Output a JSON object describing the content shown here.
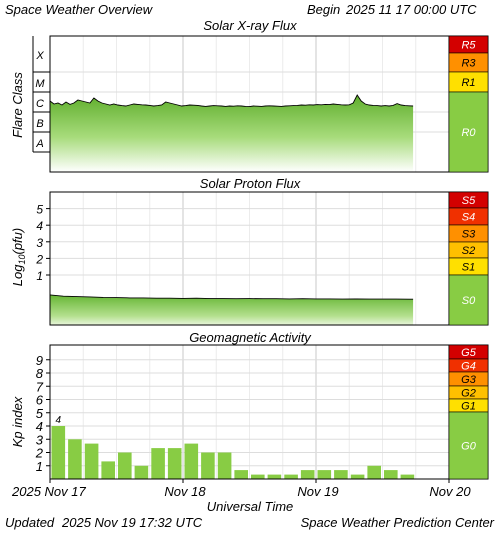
{
  "header": {
    "title": "Space Weather Overview",
    "begin_label": "Begin",
    "begin_date": "2025 11 17 00:00 UTC"
  },
  "footer": {
    "updated_label": "Updated",
    "updated_date": "2025 Nov 19 17:32 UTC",
    "center": "Space Weather Prediction Center"
  },
  "chart_data": [
    {
      "type": "line",
      "title": "Solar X-ray Flux",
      "ylabel": "Flare Class",
      "y_categories": [
        "A",
        "B",
        "C",
        "M",
        "X"
      ],
      "x_ticks": [
        "2025 Nov 17",
        "Nov 18",
        "Nov 19",
        "Nov 20"
      ],
      "xlim_days": [
        0,
        3
      ],
      "grid": true,
      "series": [
        {
          "x_days": [
            0.0,
            0.03,
            0.06,
            0.09,
            0.12,
            0.15,
            0.18,
            0.21,
            0.24,
            0.27,
            0.3,
            0.33,
            0.36,
            0.39,
            0.42,
            0.45,
            0.48,
            0.51,
            0.54,
            0.57,
            0.6,
            0.63,
            0.66,
            0.69,
            0.72,
            0.75,
            0.78,
            0.81,
            0.84,
            0.87,
            0.9,
            0.93,
            0.96,
            0.99,
            1.02,
            1.05,
            1.08,
            1.11,
            1.14,
            1.17,
            1.2,
            1.23,
            1.26,
            1.29,
            1.32,
            1.35,
            1.38,
            1.41,
            1.44,
            1.47,
            1.5,
            1.53,
            1.56,
            1.59,
            1.62,
            1.65,
            1.68,
            1.71,
            1.74,
            1.77,
            1.8,
            1.83,
            1.86,
            1.89,
            1.92,
            1.95,
            1.98,
            2.01,
            2.04,
            2.07,
            2.1,
            2.13,
            2.16,
            2.19,
            2.22,
            2.25,
            2.28,
            2.31,
            2.34,
            2.37,
            2.4,
            2.43,
            2.46,
            2.49,
            2.52,
            2.55,
            2.58,
            2.61,
            2.64,
            2.67,
            2.7,
            2.73
          ],
          "flux_level": [
            2.55,
            2.4,
            2.45,
            2.35,
            2.5,
            2.38,
            2.45,
            2.6,
            2.55,
            2.5,
            2.45,
            2.7,
            2.55,
            2.45,
            2.4,
            2.35,
            2.4,
            2.35,
            2.32,
            2.3,
            2.35,
            2.4,
            2.38,
            2.36,
            2.35,
            2.33,
            2.3,
            2.32,
            2.35,
            2.5,
            2.45,
            2.4,
            2.35,
            2.3,
            2.32,
            2.35,
            2.34,
            2.33,
            2.3,
            2.28,
            2.3,
            2.32,
            2.31,
            2.3,
            2.28,
            2.3,
            2.29,
            2.31,
            2.3,
            2.28,
            2.27,
            2.3,
            2.29,
            2.28,
            2.3,
            2.31,
            2.3,
            2.29,
            2.28,
            2.3,
            2.31,
            2.32,
            2.33,
            2.35,
            2.34,
            2.36,
            2.35,
            2.37,
            2.36,
            2.38,
            2.37,
            2.4,
            2.38,
            2.36,
            2.35,
            2.36,
            2.45,
            2.85,
            2.55,
            2.4,
            2.35,
            2.33,
            2.32,
            2.3,
            2.32,
            2.3,
            2.33,
            2.42,
            2.35,
            2.32,
            2.31,
            2.3
          ]
        }
      ],
      "scale": [
        {
          "label": "R5",
          "color": "#d30000"
        },
        {
          "label": "R3",
          "color": "#ff9000"
        },
        {
          "label": "R1",
          "color": "#ffe000"
        },
        {
          "label": "R0",
          "color": "#88cc44"
        }
      ]
    },
    {
      "type": "line",
      "title": "Solar Proton Flux",
      "ylabel": "Log10(pfu)",
      "y_ticks": [
        1,
        2,
        3,
        4,
        5
      ],
      "ylim": [
        -1.4,
        5.5
      ],
      "grid": true,
      "series": [
        {
          "x_days": [
            0.0,
            0.1,
            0.2,
            0.3,
            0.4,
            0.5,
            0.6,
            0.7,
            0.8,
            0.9,
            1.0,
            1.1,
            1.2,
            1.3,
            1.4,
            1.5,
            1.6,
            1.7,
            1.8,
            1.9,
            2.0,
            2.1,
            2.2,
            2.3,
            2.4,
            2.5,
            2.6,
            2.7,
            2.73
          ],
          "log10_pfu": [
            -0.2,
            -0.28,
            -0.3,
            -0.32,
            -0.35,
            -0.36,
            -0.38,
            -0.38,
            -0.4,
            -0.4,
            -0.41,
            -0.4,
            -0.42,
            -0.42,
            -0.43,
            -0.42,
            -0.43,
            -0.43,
            -0.44,
            -0.43,
            -0.44,
            -0.44,
            -0.45,
            -0.44,
            -0.45,
            -0.45,
            -0.45,
            -0.46,
            -0.46
          ]
        }
      ],
      "scale": [
        {
          "label": "S5",
          "color": "#d30000"
        },
        {
          "label": "S4",
          "color": "#f03000"
        },
        {
          "label": "S3",
          "color": "#ff9000"
        },
        {
          "label": "S2",
          "color": "#ffc000"
        },
        {
          "label": "S1",
          "color": "#ffe000"
        },
        {
          "label": "S0",
          "color": "#88cc44"
        }
      ]
    },
    {
      "type": "bar",
      "title": "Geomagnetic Activity",
      "ylabel": "Kp index",
      "y_ticks": [
        1,
        2,
        3,
        4,
        5,
        6,
        7,
        8,
        9
      ],
      "ylim": [
        0,
        9.6
      ],
      "grid": true,
      "bar_label": "4",
      "x_days_start": [
        0,
        0.125,
        0.25,
        0.375,
        0.5,
        0.625,
        0.75,
        0.875,
        1.0,
        1.125,
        1.25,
        1.375,
        1.5,
        1.625,
        1.75,
        1.875,
        2.0,
        2.125,
        2.25,
        2.375,
        2.5,
        2.625
      ],
      "values": [
        4.0,
        3.0,
        2.67,
        1.33,
        2.0,
        1.0,
        2.33,
        2.33,
        2.67,
        2.0,
        2.0,
        0.67,
        0.33,
        0.33,
        0.33,
        0.67,
        0.67,
        0.67,
        0.33,
        1.0,
        0.67,
        0.33
      ],
      "scale": [
        {
          "label": "G5",
          "color": "#d30000"
        },
        {
          "label": "G4",
          "color": "#f03000"
        },
        {
          "label": "G3",
          "color": "#ff9000"
        },
        {
          "label": "G2",
          "color": "#ffc000"
        },
        {
          "label": "G1",
          "color": "#ffe000"
        },
        {
          "label": "G0",
          "color": "#88cc44"
        }
      ]
    }
  ],
  "x_axis": {
    "label": "Universal Time",
    "ticks": [
      "2025 Nov 17",
      "Nov 18",
      "Nov 19",
      "Nov 20"
    ]
  }
}
